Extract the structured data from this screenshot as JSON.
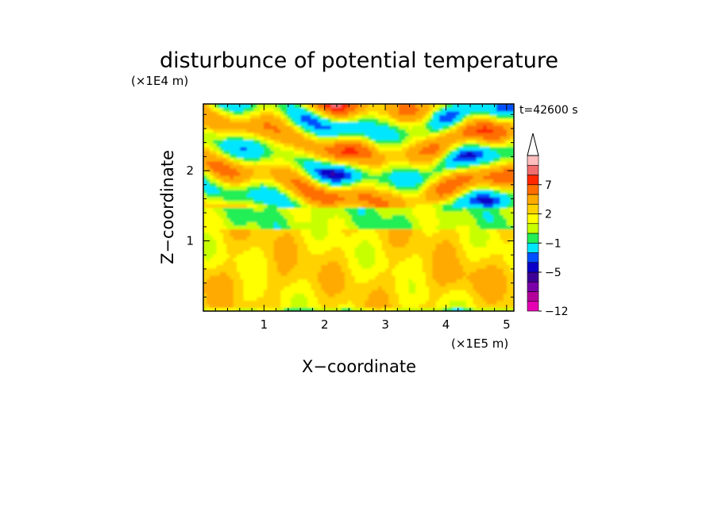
{
  "chart_data": {
    "type": "heatmap",
    "title": "disturbunce of potential temperature",
    "xlabel": "X−coordinate",
    "ylabel": "Z−coordinate",
    "x_unit": "(×1E5 m)",
    "y_unit": "(×1E4 m)",
    "time_label": "t=42600 s",
    "xlim": [
      0,
      5.12
    ],
    "ylim": [
      0,
      2.95
    ],
    "x_ticks": [
      1,
      2,
      3,
      4,
      5
    ],
    "x_tick_labels": [
      "1",
      "2",
      "3",
      "4",
      "5"
    ],
    "y_ticks": [
      1,
      2
    ],
    "y_tick_labels": [
      "1",
      "2"
    ],
    "colorbar": {
      "levels": [
        -12,
        -10,
        -8,
        -6,
        -5,
        -4,
        -3,
        -1,
        0,
        1,
        2,
        3,
        5,
        7,
        8,
        9,
        10
      ],
      "labeled_levels": [
        -12,
        -5,
        -1,
        2,
        7
      ],
      "labels": [
        "−12",
        "−5",
        "−1",
        "2",
        "7"
      ],
      "colors": [
        "#e600b4",
        "#b4009b",
        "#7a00a8",
        "#3c0096",
        "#0a00c8",
        "#0050ff",
        "#00e6ff",
        "#22ee55",
        "#c8ff00",
        "#ffff00",
        "#ffd200",
        "#ffaa00",
        "#ff6e00",
        "#ff2800",
        "#f06e6e",
        "#ffbebe"
      ],
      "extend": "max"
    },
    "field_description": "Near-neutral yellow/orange layer below z≈1.2 (x1E4 m); green band at z≈1.2–1.5; alternating blue/red wave pattern aloft between z≈1.7 and 2.9, strongest near x≈2.2 and x≈4.5 (x1E5 m)."
  }
}
